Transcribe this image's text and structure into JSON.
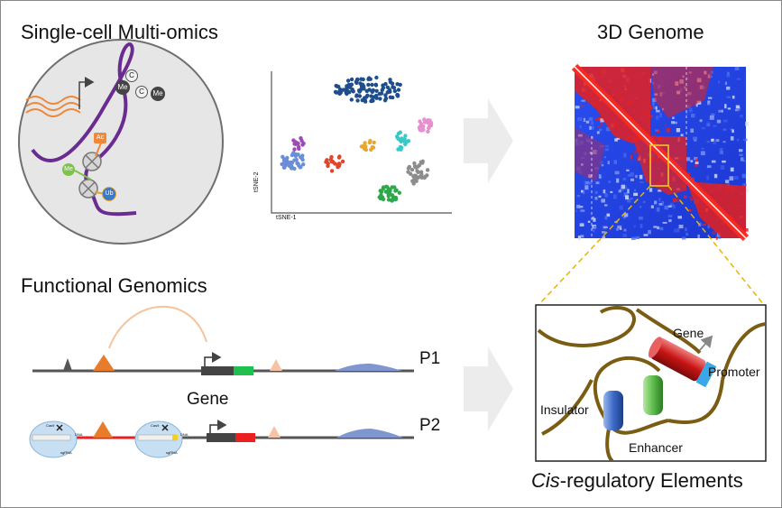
{
  "sections": {
    "top_left_title": "Single-cell Multi-omics",
    "top_right_title": "3D Genome",
    "bottom_left_title": "Functional Genomics",
    "bottom_right_title_italic": "Cis",
    "bottom_right_title_rest": "-regulatory Elements"
  },
  "cell": {
    "marks": [
      "C",
      "Me",
      "C",
      "Me",
      "Ac",
      "Me",
      "Ub"
    ]
  },
  "tsne": {
    "xlabel": "tSNE-1",
    "ylabel": "tSNE-2"
  },
  "functional": {
    "track1": "P1",
    "track2": "P2",
    "gene": "Gene",
    "small_labels": [
      "Cas9",
      "DNA",
      "sgRNA",
      "Cas9",
      "DNA",
      "sgRNA"
    ]
  },
  "cre": {
    "gene": "Gene",
    "promoter": "Promoter",
    "insulator": "Insulator",
    "enhancer": "Enhancer"
  },
  "colors": {
    "purple": "#6a2c91",
    "orange": "#f0883a",
    "hic_red": "#e8201c",
    "hic_blue": "#1f3fe0",
    "chromatin": "#7a5c12",
    "arrow_gray": "#ececec"
  }
}
